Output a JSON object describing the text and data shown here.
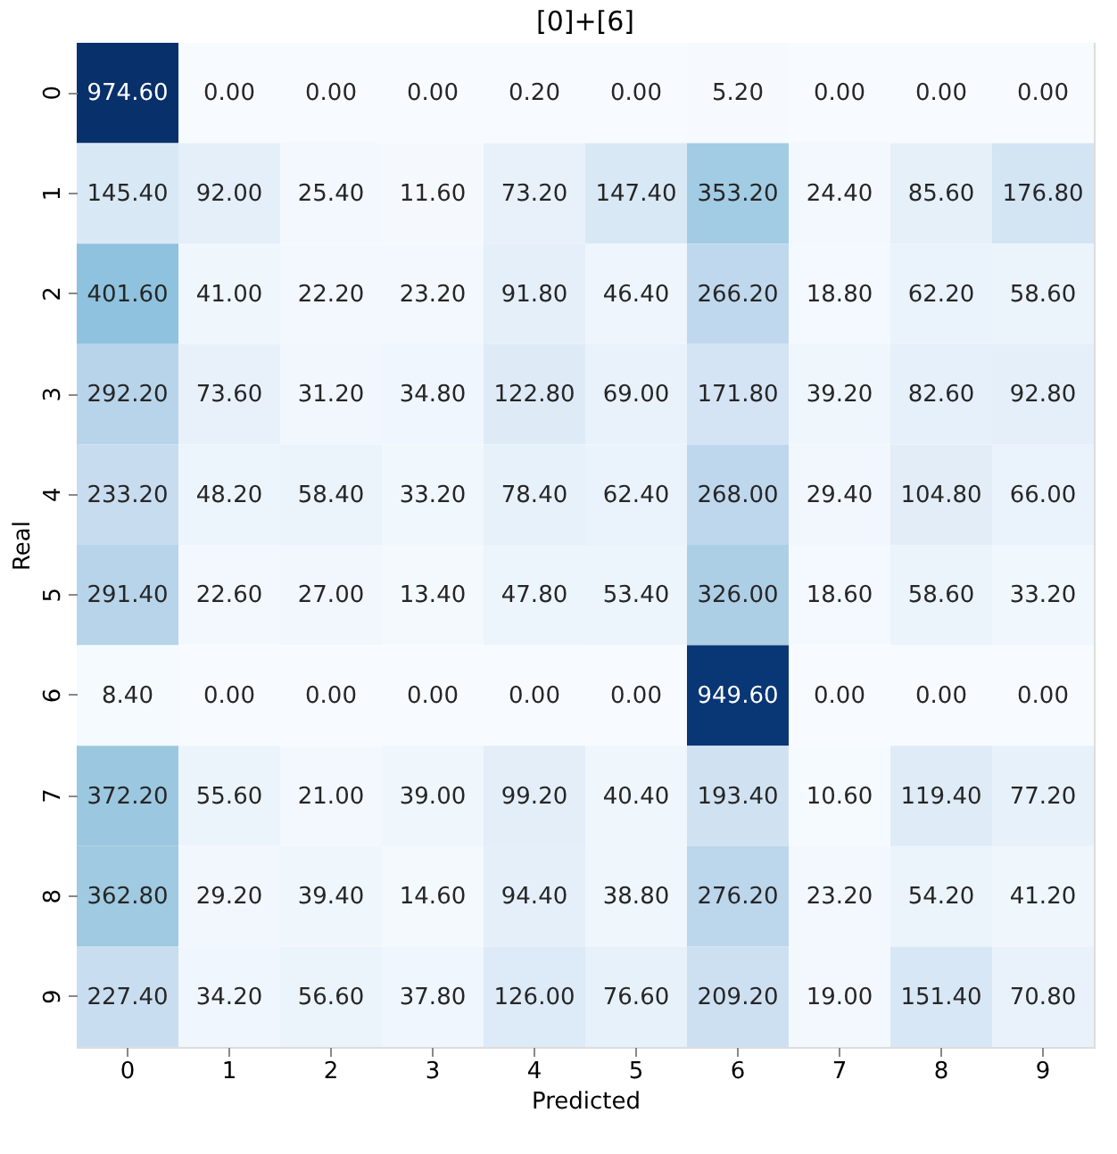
{
  "chart_data": {
    "type": "heatmap",
    "title": "[0]+[6]",
    "xlabel": "Predicted",
    "ylabel": "Real",
    "categories": [
      "0",
      "1",
      "2",
      "3",
      "4",
      "5",
      "6",
      "7",
      "8",
      "9"
    ],
    "y_categories": [
      "0",
      "1",
      "2",
      "3",
      "4",
      "5",
      "6",
      "7",
      "8",
      "9"
    ],
    "cells": [
      [
        974.6,
        0,
        0,
        0,
        0.2,
        0,
        5.2,
        0,
        0,
        0
      ],
      [
        145.4,
        92,
        25.4,
        11.6,
        73.2,
        147.4,
        353.2,
        24.4,
        85.6,
        176.8
      ],
      [
        401.6,
        41,
        22.2,
        23.2,
        91.8,
        46.4,
        266.2,
        18.8,
        62.2,
        58.6
      ],
      [
        292.2,
        73.6,
        31.2,
        34.8,
        122.8,
        69,
        171.8,
        39.2,
        82.6,
        92.8
      ],
      [
        233.2,
        48.2,
        58.4,
        33.2,
        78.4,
        62.4,
        268,
        29.4,
        104.8,
        66
      ],
      [
        291.4,
        22.6,
        27,
        13.4,
        47.8,
        53.4,
        326,
        18.6,
        58.6,
        33.2
      ],
      [
        8.4,
        0,
        0,
        0,
        0,
        0,
        949.6,
        0,
        0,
        0
      ],
      [
        372.2,
        55.6,
        21,
        39,
        99.2,
        40.4,
        193.4,
        10.6,
        119.4,
        77.2
      ],
      [
        362.8,
        29.2,
        39.4,
        14.6,
        94.4,
        38.8,
        276.2,
        23.2,
        54.2,
        41.2
      ],
      [
        227.4,
        34.2,
        56.6,
        37.8,
        126,
        76.6,
        209.2,
        19,
        151.4,
        70.8
      ]
    ],
    "cell_labels": [
      [
        "974.60",
        "0.00",
        "0.00",
        "0.00",
        "0.20",
        "0.00",
        "5.20",
        "0.00",
        "0.00",
        "0.00"
      ],
      [
        "145.40",
        "92.00",
        "25.40",
        "11.60",
        "73.20",
        "147.40",
        "353.20",
        "24.40",
        "85.60",
        "176.80"
      ],
      [
        "401.60",
        "41.00",
        "22.20",
        "23.20",
        "91.80",
        "46.40",
        "266.20",
        "18.80",
        "62.20",
        "58.60"
      ],
      [
        "292.20",
        "73.60",
        "31.20",
        "34.80",
        "122.80",
        "69.00",
        "171.80",
        "39.20",
        "82.60",
        "92.80"
      ],
      [
        "233.20",
        "48.20",
        "58.40",
        "33.20",
        "78.40",
        "62.40",
        "268.00",
        "29.40",
        "104.80",
        "66.00"
      ],
      [
        "291.40",
        "22.60",
        "27.00",
        "13.40",
        "47.80",
        "53.40",
        "326.00",
        "18.60",
        "58.60",
        "33.20"
      ],
      [
        "8.40",
        "0.00",
        "0.00",
        "0.00",
        "0.00",
        "0.00",
        "949.60",
        "0.00",
        "0.00",
        "0.00"
      ],
      [
        "372.20",
        "55.60",
        "21.00",
        "39.00",
        "99.20",
        "40.40",
        "193.40",
        "10.60",
        "119.40",
        "77.20"
      ],
      [
        "362.80",
        "29.20",
        "39.40",
        "14.60",
        "94.40",
        "38.80",
        "276.20",
        "23.20",
        "54.20",
        "41.20"
      ],
      [
        "227.40",
        "34.20",
        "56.60",
        "37.80",
        "126.00",
        "76.60",
        "209.20",
        "19.00",
        "151.40",
        "70.80"
      ]
    ]
  }
}
